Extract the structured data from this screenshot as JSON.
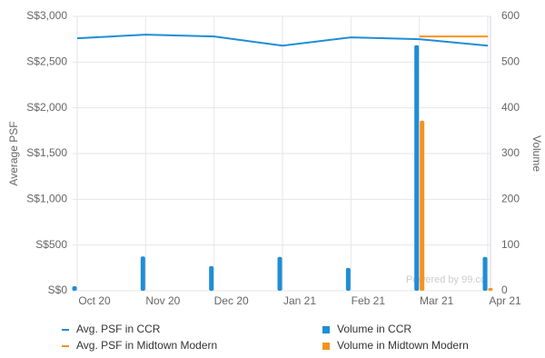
{
  "chart_data": {
    "type": "combo",
    "categories": [
      "Oct 20",
      "Nov 20",
      "Dec 20",
      "Jan 21",
      "Feb 21",
      "Mar 21",
      "Apr 21"
    ],
    "y_label": "Average PSF",
    "y2_label": "Volume",
    "ylim": [
      0,
      3000
    ],
    "yticks": [
      {
        "value": 0,
        "label": "S$0"
      },
      {
        "value": 500,
        "label": "S$500"
      },
      {
        "value": 1000,
        "label": "S$1,000"
      },
      {
        "value": 1500,
        "label": "S$1,500"
      },
      {
        "value": 2000,
        "label": "S$2,000"
      },
      {
        "value": 2500,
        "label": "S$2,500"
      },
      {
        "value": 3000,
        "label": "S$3,000"
      }
    ],
    "y2lim": [
      0,
      600
    ],
    "y2ticks": [
      0,
      100,
      200,
      300,
      400,
      500,
      600
    ],
    "grid": true,
    "watermark": "Powered by 99.co",
    "series": [
      {
        "name": "Avg. PSF in CCR",
        "type": "line",
        "color": "#1f8dd6",
        "values": [
          2760,
          2800,
          2780,
          2680,
          2770,
          2750,
          2680
        ]
      },
      {
        "name": "Avg. PSF in Midtown Modern",
        "type": "line",
        "color": "#f7931e",
        "values": [
          null,
          null,
          null,
          null,
          null,
          2780,
          2780
        ]
      },
      {
        "name": "Volume in CCR",
        "type": "bar",
        "axis": "y2",
        "color": "#1f8dd6",
        "values": [
          10,
          75,
          54,
          74,
          50,
          537,
          74
        ]
      },
      {
        "name": "Volume in Midtown Modern",
        "type": "bar",
        "axis": "y2",
        "color": "#f7931e",
        "values": [
          null,
          null,
          null,
          null,
          null,
          372,
          6
        ]
      }
    ]
  }
}
